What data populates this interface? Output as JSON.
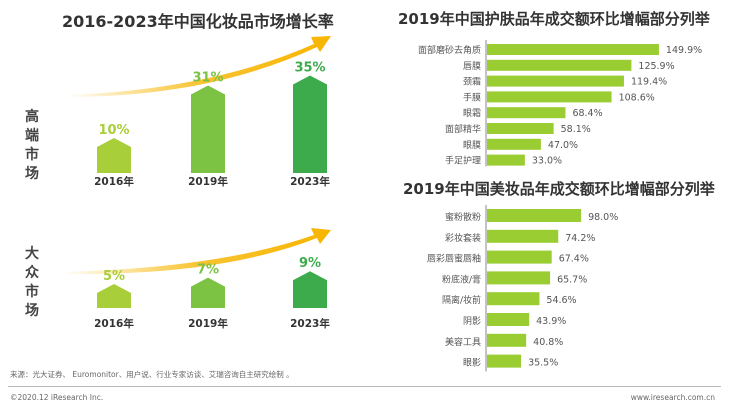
{
  "colors": {
    "arrow": "#f7b500",
    "bar": "#9acd32",
    "axis": "#888888",
    "light": "#a8cf3a",
    "mid": "#7cc243",
    "dark": "#3daa4b"
  },
  "chart_data": [
    {
      "type": "bar",
      "title": "2016-2023年中国化妆品市场增长率",
      "categories": [
        "2016年",
        "2019年",
        "2023年"
      ],
      "series": [
        {
          "name": "高端市场",
          "values": [
            10,
            31,
            35
          ],
          "labels": [
            "10%",
            "31%",
            "35%"
          ]
        },
        {
          "name": "大众市场",
          "values": [
            5,
            7,
            9
          ],
          "labels": [
            "5%",
            "7%",
            "9%"
          ]
        }
      ]
    },
    {
      "type": "bar",
      "orientation": "horizontal",
      "title": "2019年中国护肤品年成交额环比增幅部分列举",
      "categories": [
        "面部磨砂去角质",
        "唇膜",
        "颈霜",
        "手膜",
        "眼霜",
        "面部精华",
        "眼膜",
        "手足护理"
      ],
      "values": [
        149.9,
        125.9,
        119.4,
        108.6,
        68.4,
        58.1,
        47.0,
        33.0
      ],
      "labels": [
        "149.9%",
        "125.9%",
        "119.4%",
        "108.6%",
        "68.4%",
        "58.1%",
        "47.0%",
        "33.0%"
      ]
    },
    {
      "type": "bar",
      "orientation": "horizontal",
      "title": "2019年中国美妆品年成交额环比增幅部分列举",
      "categories": [
        "蜜粉散粉",
        "彩妆套装",
        "唇彩唇蜜唇釉",
        "粉底液/膏",
        "隔离/妆前",
        "阴影",
        "美容工具",
        "眼影"
      ],
      "values": [
        98.0,
        74.2,
        67.4,
        65.7,
        54.6,
        43.9,
        40.8,
        35.5
      ],
      "labels": [
        "98.0%",
        "74.2%",
        "67.4%",
        "65.7%",
        "54.6%",
        "43.9%",
        "40.8%",
        "35.5%"
      ]
    }
  ],
  "footer": {
    "source": "来源：光大证券、 Euromonitor、用户说、行业专家访谈、艾瑞咨询自主研究绘制 。",
    "copyright": "©2020.12 iResearch Inc.",
    "website": "www.iresearch.com.cn"
  }
}
